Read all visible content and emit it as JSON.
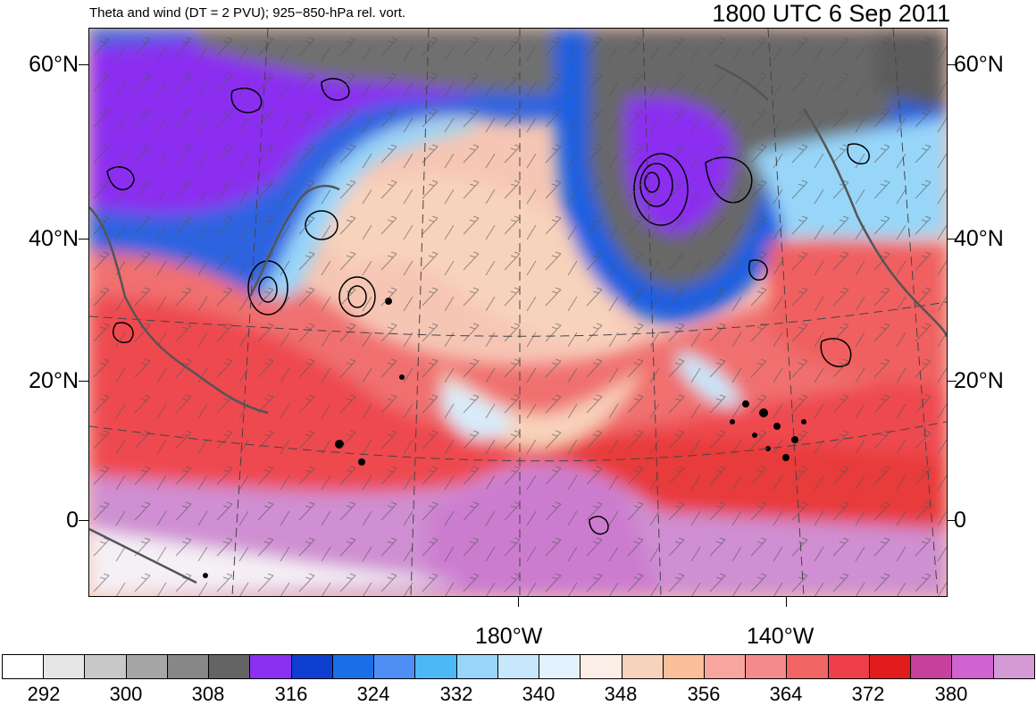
{
  "title_left": "Theta and wind (DT = 2 PVU); 925−850-hPa rel. vort.",
  "title_right": "1800 UTC 6 Sep 2011",
  "lat_labels": [
    "60°N",
    "40°N",
    "20°N",
    "0"
  ],
  "lon_labels": [
    "180°W",
    "140°W"
  ],
  "colorbar": {
    "colors": [
      "#ffffff",
      "#e6e6e6",
      "#c8c8c8",
      "#a6a6a6",
      "#878787",
      "#646464",
      "#8b2ff0",
      "#0f3fd0",
      "#1a6fe8",
      "#4f8ff5",
      "#4cb8f5",
      "#98d6f9",
      "#c7e8fb",
      "#e2f1fb",
      "#fbeee6",
      "#f8d3bb",
      "#fbbf9c",
      "#f8a59e",
      "#f58a8a",
      "#f26565",
      "#ee3f48",
      "#e21c1c",
      "#c6419c",
      "#d063cf",
      "#d49ad6"
    ],
    "labels": [
      "292",
      "300",
      "308",
      "316",
      "324",
      "332",
      "340",
      "348",
      "356",
      "364",
      "372",
      "380"
    ]
  }
}
